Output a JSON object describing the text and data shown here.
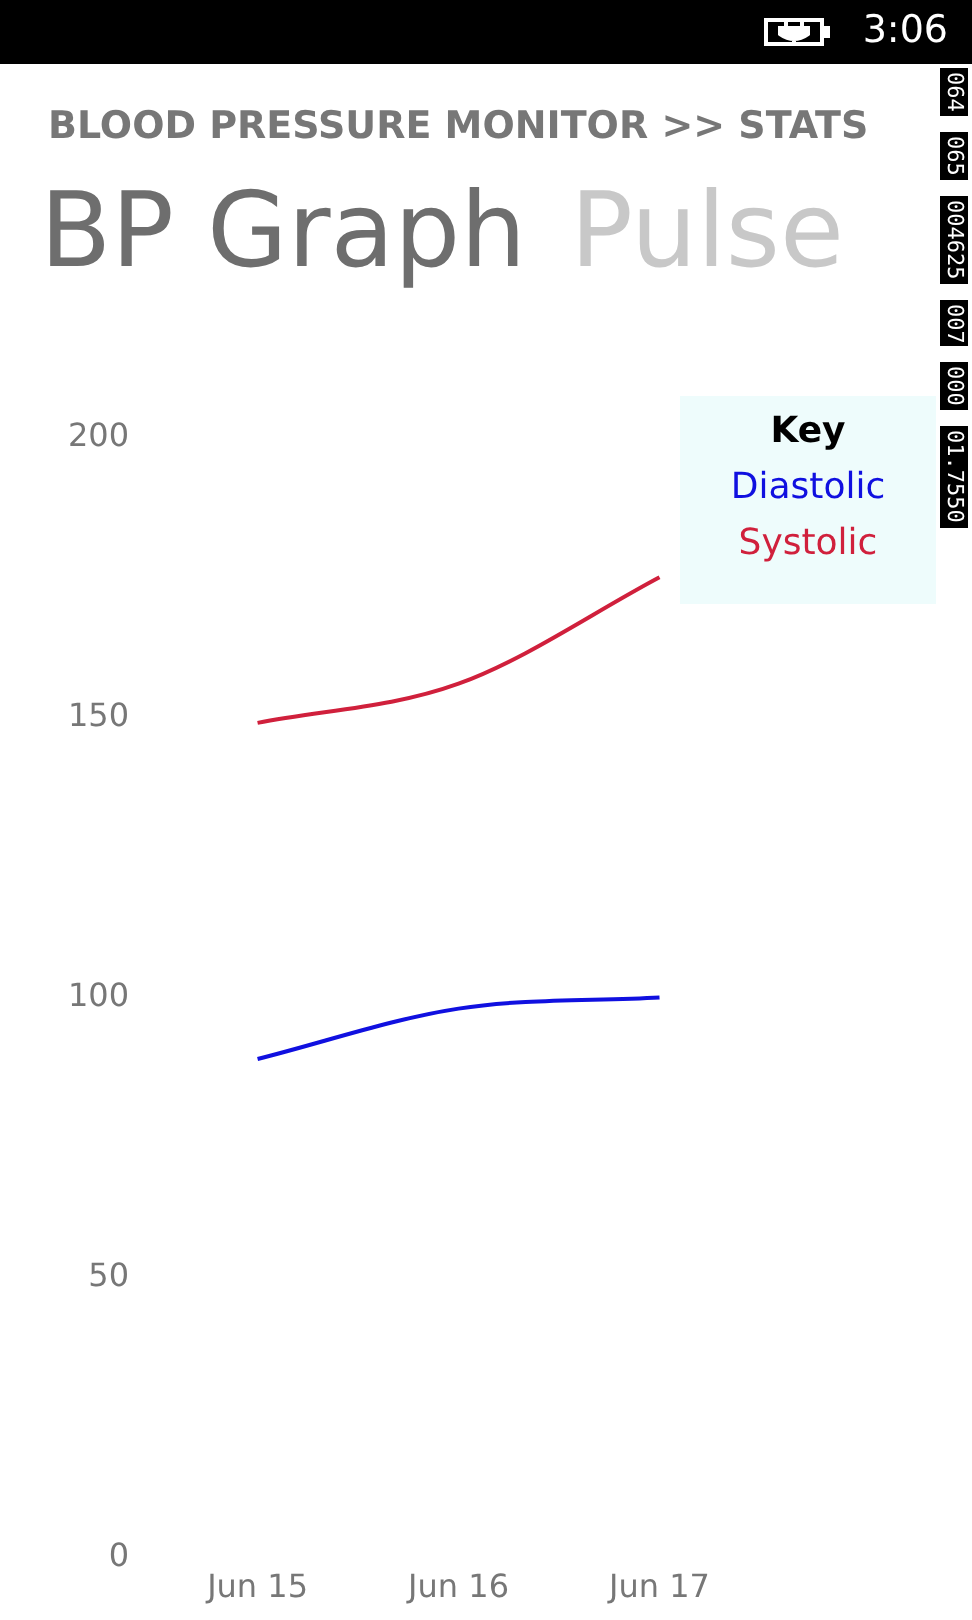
{
  "chart_data": {
    "type": "line",
    "title": "BLOOD PRESSURE MONITOR >> STATS",
    "subtitle": "BP Graph",
    "annotations": [
      "Pulse",
      "3:06",
      "064",
      "065",
      "004625",
      "007",
      "000",
      "01.7550"
    ],
    "categories": [
      "Jun 15",
      "Jun 16",
      "Jun 17"
    ],
    "series": [
      {
        "name": "Diastolic",
        "color": "#1010e0",
        "values": [
          89,
          98,
          100
        ]
      },
      {
        "name": "Systolic",
        "color": "#d0203c",
        "values": [
          149,
          156,
          175
        ]
      }
    ],
    "ylim": [
      0,
      200
    ],
    "yticks": [
      0,
      50,
      100,
      150,
      200
    ],
    "legend": "top right",
    "legend_title": "Key"
  }
}
